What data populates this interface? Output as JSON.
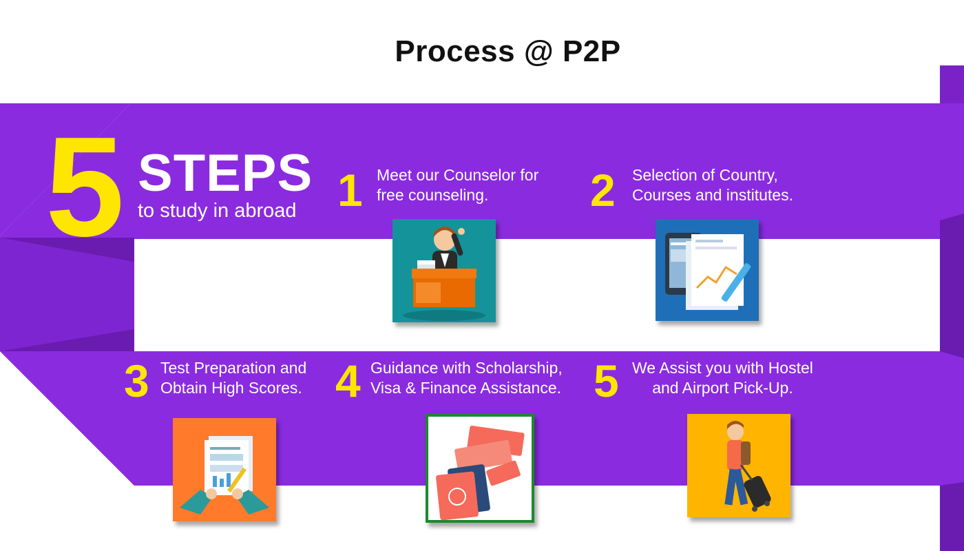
{
  "title": "Process @ P2P",
  "hero": {
    "big_number": "5",
    "word": "STEPS",
    "subtitle": "to study in abroad"
  },
  "steps": [
    {
      "number": "1",
      "line1": "Meet our Counselor for",
      "line2": "free counseling.",
      "icon": "counselor-desk-icon"
    },
    {
      "number": "2",
      "line1": "Selection of Country,",
      "line2": "Courses and institutes.",
      "icon": "documents-pen-icon"
    },
    {
      "number": "3",
      "line1": "Test Preparation and",
      "line2": "Obtain High Scores.",
      "icon": "test-paper-icon"
    },
    {
      "number": "4",
      "line1": "Guidance with Scholarship,",
      "line2": "Visa & Finance Assistance.",
      "icon": "passport-tickets-icon"
    },
    {
      "number": "5",
      "line1": "We Assist you with Hostel",
      "line2": "and Airport Pick-Up.",
      "icon": "traveler-luggage-icon"
    }
  ],
  "colors": {
    "ribbon": "#8a2be0",
    "ribbon_dark": "#6a1bb0",
    "accent": "#ffe600",
    "card1": "#15939a",
    "card2": "#1f6fb8",
    "card3": "#ff7a2a",
    "card4_border": "#1a8a2e",
    "card5": "#ffb400"
  }
}
